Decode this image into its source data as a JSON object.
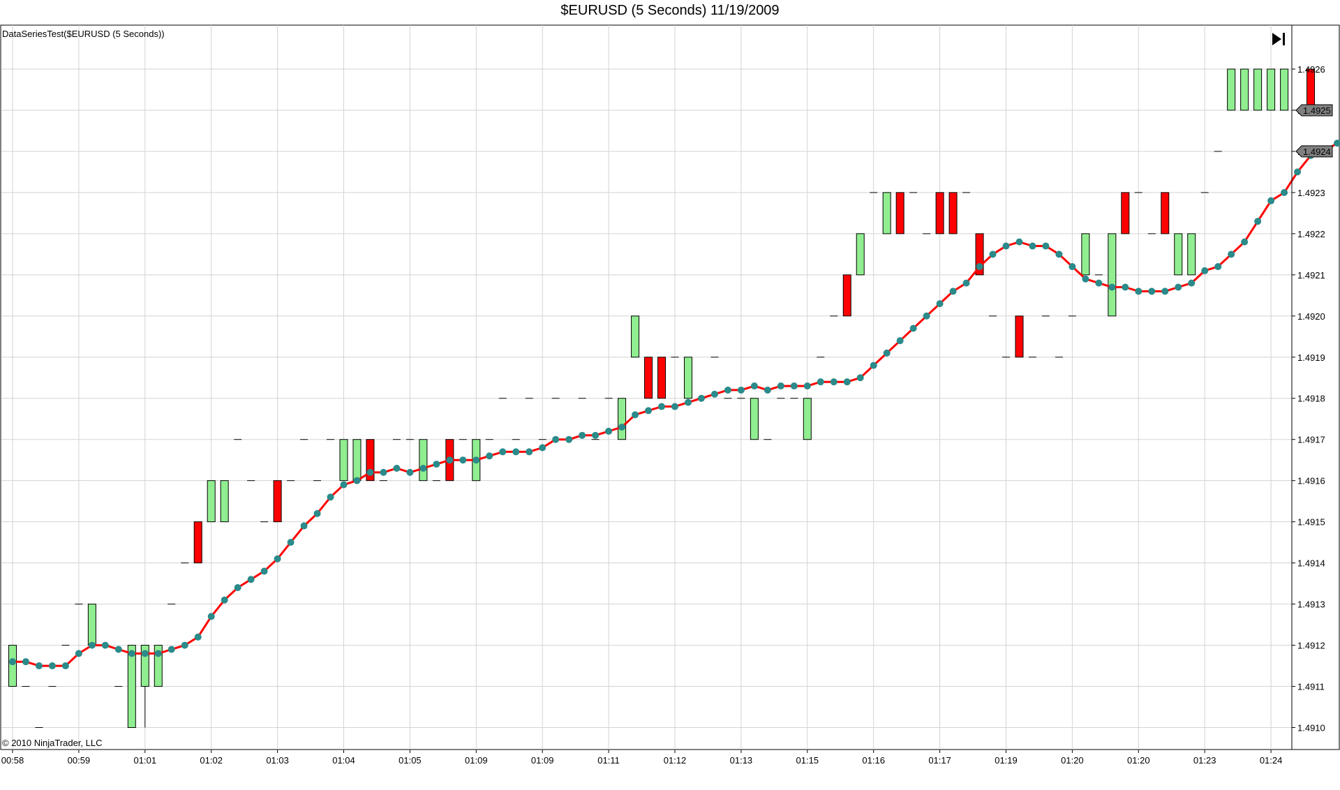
{
  "window": {
    "title": "$EURUSD (5 Seconds)  11/19/2009",
    "indicator_label": "DataSeriesTest($EURUSD (5 Seconds))",
    "copyright": "© 2010 NinjaTrader, LLC",
    "scroll_end_icon": "skip-to-end-icon"
  },
  "chart_data": {
    "type": "candlestick",
    "title": "$EURUSD (5 Seconds)  11/19/2009",
    "grid": true,
    "ylim": [
      1.49095,
      1.4927
    ],
    "y_ticks": [
      "1.4910",
      "1.4911",
      "1.4912",
      "1.4913",
      "1.4914",
      "1.4915",
      "1.4916",
      "1.4917",
      "1.4918",
      "1.4919",
      "1.4920",
      "1.4921",
      "1.4922",
      "1.4923",
      "1.4924",
      "1.4925",
      "1.4926"
    ],
    "x_ticks": [
      "00:58",
      "00:59",
      "01:01",
      "01:02",
      "01:03",
      "01:04",
      "01:05",
      "01:09",
      "01:09",
      "01:11",
      "01:12",
      "01:13",
      "01:15",
      "01:16",
      "01:17",
      "01:19",
      "01:20",
      "01:20",
      "01:23",
      "01:24"
    ],
    "last_price": "1.4925",
    "indicator_last": "1.4924",
    "colors": {
      "up": "#90ee90",
      "down": "#ff0000",
      "line": "#ff0000",
      "dot": "#2b8a8a",
      "grid": "#d3d3d3"
    },
    "bars": [
      [
        1.4911,
        1.4912,
        1.4911,
        1.4912
      ],
      [
        1.4911,
        1.4911,
        1.4911,
        1.4911
      ],
      [
        1.491,
        1.491,
        1.491,
        1.491
      ],
      [
        1.4911,
        1.4911,
        1.4911,
        1.4911
      ],
      [
        1.4912,
        1.4912,
        1.4912,
        1.4912
      ],
      [
        1.4913,
        1.4913,
        1.4913,
        1.4913
      ],
      [
        1.4912,
        1.4913,
        1.4912,
        1.4913
      ],
      [
        1.4912,
        1.4912,
        1.4912,
        1.4912
      ],
      [
        1.4911,
        1.4911,
        1.4911,
        1.4911
      ],
      [
        1.491,
        1.4912,
        1.491,
        1.4912
      ],
      [
        1.4911,
        1.4912,
        1.491,
        1.4912
      ],
      [
        1.4911,
        1.4912,
        1.4911,
        1.4912
      ],
      [
        1.4913,
        1.4913,
        1.4913,
        1.4913
      ],
      [
        1.4914,
        1.4914,
        1.4914,
        1.4914
      ],
      [
        1.4915,
        1.4915,
        1.4914,
        1.4914
      ],
      [
        1.4915,
        1.4916,
        1.4915,
        1.4916
      ],
      [
        1.4915,
        1.4916,
        1.4915,
        1.4916
      ],
      [
        1.4917,
        1.4917,
        1.4917,
        1.4917
      ],
      [
        1.4916,
        1.4916,
        1.4916,
        1.4916
      ],
      [
        1.4915,
        1.4915,
        1.4915,
        1.4915
      ],
      [
        1.4916,
        1.4916,
        1.4915,
        1.4915
      ],
      [
        1.4916,
        1.4916,
        1.4916,
        1.4916
      ],
      [
        1.4917,
        1.4917,
        1.4917,
        1.4917
      ],
      [
        1.4916,
        1.4916,
        1.4916,
        1.4916
      ],
      [
        1.4917,
        1.4917,
        1.4917,
        1.4917
      ],
      [
        1.4916,
        1.4917,
        1.4916,
        1.4917
      ],
      [
        1.4916,
        1.4917,
        1.4916,
        1.4917
      ],
      [
        1.4917,
        1.4917,
        1.4916,
        1.4916
      ],
      [
        1.4916,
        1.4916,
        1.4916,
        1.4916
      ],
      [
        1.4917,
        1.4917,
        1.4917,
        1.4917
      ],
      [
        1.4917,
        1.4917,
        1.4917,
        1.4917
      ],
      [
        1.4916,
        1.4917,
        1.4916,
        1.4917
      ],
      [
        1.4916,
        1.4916,
        1.4916,
        1.4916
      ],
      [
        1.4917,
        1.4917,
        1.4916,
        1.4916
      ],
      [
        1.4917,
        1.4917,
        1.4917,
        1.4917
      ],
      [
        1.4916,
        1.4917,
        1.4916,
        1.4917
      ],
      [
        1.4917,
        1.4917,
        1.4917,
        1.4917
      ],
      [
        1.4918,
        1.4918,
        1.4918,
        1.4918
      ],
      [
        1.4917,
        1.4917,
        1.4917,
        1.4917
      ],
      [
        1.4918,
        1.4918,
        1.4918,
        1.4918
      ],
      [
        1.4917,
        1.4917,
        1.4917,
        1.4917
      ],
      [
        1.4918,
        1.4918,
        1.4918,
        1.4918
      ],
      [
        1.4917,
        1.4917,
        1.4917,
        1.4917
      ],
      [
        1.4918,
        1.4918,
        1.4918,
        1.4918
      ],
      [
        1.4917,
        1.4917,
        1.4917,
        1.4917
      ],
      [
        1.4918,
        1.4918,
        1.4918,
        1.4918
      ],
      [
        1.4917,
        1.4918,
        1.4917,
        1.4918
      ],
      [
        1.4919,
        1.492,
        1.4919,
        1.492
      ],
      [
        1.4919,
        1.4919,
        1.4918,
        1.4918
      ],
      [
        1.4919,
        1.4919,
        1.4918,
        1.4918
      ],
      [
        1.4919,
        1.4919,
        1.4919,
        1.4919
      ],
      [
        1.4918,
        1.4919,
        1.4918,
        1.4919
      ],
      [
        1.4918,
        1.4918,
        1.4918,
        1.4918
      ],
      [
        1.4919,
        1.4919,
        1.4919,
        1.4919
      ],
      [
        1.4918,
        1.4918,
        1.4918,
        1.4918
      ],
      [
        1.4918,
        1.4918,
        1.4918,
        1.4918
      ],
      [
        1.4917,
        1.4918,
        1.4917,
        1.4918
      ],
      [
        1.4917,
        1.4917,
        1.4917,
        1.4917
      ],
      [
        1.4918,
        1.4918,
        1.4918,
        1.4918
      ],
      [
        1.4918,
        1.4918,
        1.4918,
        1.4918
      ],
      [
        1.4917,
        1.4918,
        1.4917,
        1.4918
      ],
      [
        1.4919,
        1.4919,
        1.4919,
        1.4919
      ],
      [
        1.492,
        1.492,
        1.492,
        1.492
      ],
      [
        1.4921,
        1.4921,
        1.492,
        1.492
      ],
      [
        1.4921,
        1.4922,
        1.4921,
        1.4922
      ],
      [
        1.4923,
        1.4923,
        1.4923,
        1.4923
      ],
      [
        1.4922,
        1.4923,
        1.4922,
        1.4923
      ],
      [
        1.4923,
        1.4923,
        1.4922,
        1.4922
      ],
      [
        1.4923,
        1.4923,
        1.4923,
        1.4923
      ],
      [
        1.4922,
        1.4922,
        1.4922,
        1.4922
      ],
      [
        1.4923,
        1.4923,
        1.4922,
        1.4922
      ],
      [
        1.4923,
        1.4923,
        1.4922,
        1.4922
      ],
      [
        1.4923,
        1.4923,
        1.4923,
        1.4923
      ],
      [
        1.4922,
        1.4922,
        1.4921,
        1.4921
      ],
      [
        1.492,
        1.492,
        1.492,
        1.492
      ],
      [
        1.4919,
        1.4919,
        1.4919,
        1.4919
      ],
      [
        1.492,
        1.492,
        1.4919,
        1.4919
      ],
      [
        1.4919,
        1.4919,
        1.4919,
        1.4919
      ],
      [
        1.492,
        1.492,
        1.492,
        1.492
      ],
      [
        1.4919,
        1.4919,
        1.4919,
        1.4919
      ],
      [
        1.492,
        1.492,
        1.492,
        1.492
      ],
      [
        1.4921,
        1.4922,
        1.4921,
        1.4922
      ],
      [
        1.4921,
        1.4921,
        1.4921,
        1.4921
      ],
      [
        1.492,
        1.4922,
        1.492,
        1.4922
      ],
      [
        1.4923,
        1.4923,
        1.4922,
        1.4922
      ],
      [
        1.4923,
        1.4923,
        1.4923,
        1.4923
      ],
      [
        1.4922,
        1.4922,
        1.4922,
        1.4922
      ],
      [
        1.4923,
        1.4923,
        1.4922,
        1.4922
      ],
      [
        1.4921,
        1.4922,
        1.4921,
        1.4922
      ],
      [
        1.4921,
        1.4922,
        1.4921,
        1.4922
      ],
      [
        1.4923,
        1.4923,
        1.4923,
        1.4923
      ],
      [
        1.4924,
        1.4924,
        1.4924,
        1.4924
      ],
      [
        1.4925,
        1.4926,
        1.4925,
        1.4926
      ],
      [
        1.4925,
        1.4926,
        1.4925,
        1.4926
      ],
      [
        1.4925,
        1.4926,
        1.4925,
        1.4926
      ],
      [
        1.4925,
        1.4926,
        1.4925,
        1.4926
      ],
      [
        1.4925,
        1.4926,
        1.4925,
        1.4926
      ],
      [
        1.4925,
        1.4925,
        1.4925,
        1.4925
      ],
      [
        1.4926,
        1.4926,
        1.4925,
        1.4925
      ]
    ],
    "series": [
      {
        "type": "line",
        "values": [
          1.49116,
          1.49116,
          1.49115,
          1.49115,
          1.49115,
          1.49118,
          1.4912,
          1.4912,
          1.49119,
          1.49118,
          1.49118,
          1.49118,
          1.49119,
          1.4912,
          1.49122,
          1.49127,
          1.49131,
          1.49134,
          1.49136,
          1.49138,
          1.49141,
          1.49145,
          1.49149,
          1.49152,
          1.49156,
          1.49159,
          1.4916,
          1.49162,
          1.49162,
          1.49163,
          1.49162,
          1.49163,
          1.49164,
          1.49165,
          1.49165,
          1.49165,
          1.49166,
          1.49167,
          1.49167,
          1.49167,
          1.49168,
          1.4917,
          1.4917,
          1.49171,
          1.49171,
          1.49172,
          1.49173,
          1.49176,
          1.49177,
          1.49178,
          1.49178,
          1.49179,
          1.4918,
          1.49181,
          1.49182,
          1.49182,
          1.49183,
          1.49182,
          1.49183,
          1.49183,
          1.49183,
          1.49184,
          1.49184,
          1.49184,
          1.49185,
          1.49188,
          1.49191,
          1.49194,
          1.49197,
          1.492,
          1.49203,
          1.49206,
          1.49208,
          1.49212,
          1.49215,
          1.49217,
          1.49218,
          1.49217,
          1.49217,
          1.49215,
          1.49212,
          1.49209,
          1.49208,
          1.49207,
          1.49207,
          1.49206,
          1.49206,
          1.49206,
          1.49207,
          1.49208,
          1.49211,
          1.49212,
          1.49215,
          1.49218,
          1.49223,
          1.49228,
          1.4923,
          1.49235,
          1.49239,
          1.4924,
          1.49242
        ]
      }
    ]
  }
}
